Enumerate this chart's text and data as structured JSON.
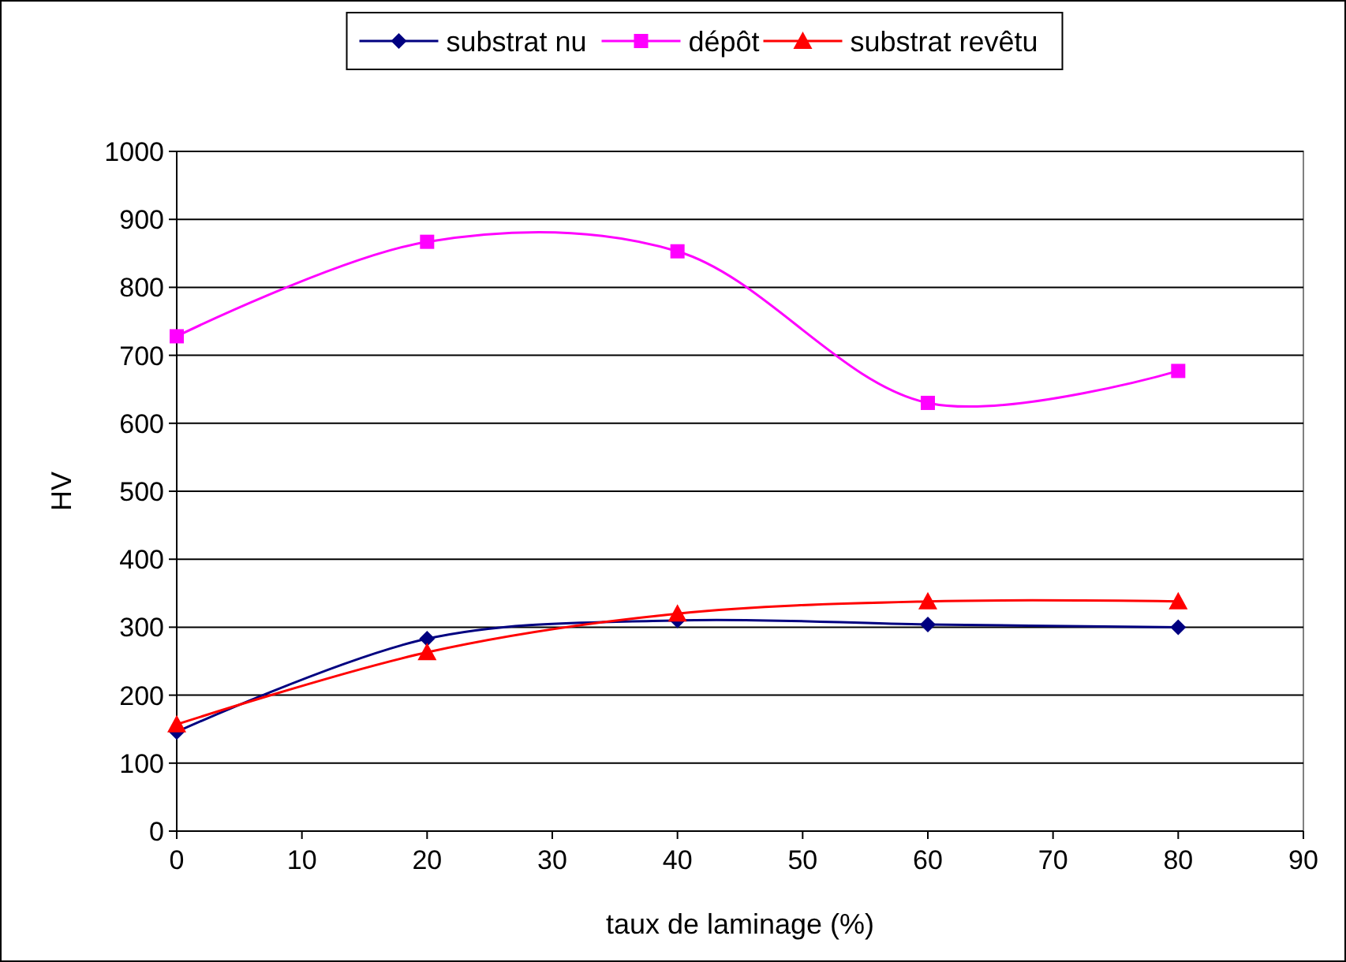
{
  "chart_data": {
    "type": "line",
    "xlabel": "taux de laminage (%)",
    "ylabel": "HV",
    "x": [
      0,
      20,
      40,
      60,
      80
    ],
    "series": [
      {
        "name": "substrat nu",
        "color": "#000080",
        "marker": "diamond",
        "values": [
          146,
          283,
          310,
          304,
          300
        ]
      },
      {
        "name": "dépôt",
        "color": "#ff00ff",
        "marker": "square",
        "values": [
          728,
          867,
          853,
          630,
          677
        ]
      },
      {
        "name": "substrat revêtu",
        "color": "#ff0000",
        "marker": "triangle",
        "values": [
          157,
          263,
          320,
          338,
          338
        ]
      }
    ],
    "xlim": [
      0,
      90
    ],
    "xticks": [
      0,
      10,
      20,
      30,
      40,
      50,
      60,
      70,
      80,
      90
    ],
    "ylim": [
      0,
      1000
    ],
    "yticks": [
      0,
      100,
      200,
      300,
      400,
      500,
      600,
      700,
      800,
      900,
      1000
    ],
    "grid": "y",
    "legend": "top",
    "line_style": "solid"
  }
}
